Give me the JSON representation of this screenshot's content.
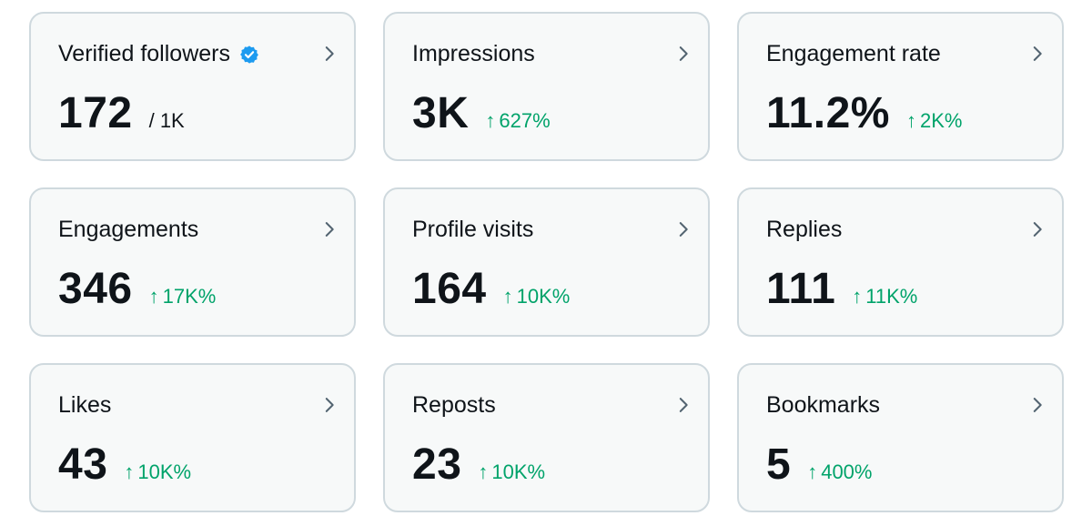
{
  "colors": {
    "card_bg": "#f7f9f9",
    "card_border": "#cfd9de",
    "text": "#0f1419",
    "muted": "#536471",
    "positive": "#00a36a",
    "verified": "#1d9bf0"
  },
  "cards": [
    {
      "title": "Verified followers",
      "value": "172",
      "sub": "/ 1K",
      "icon": "verified-badge-icon"
    },
    {
      "title": "Impressions",
      "value": "3K",
      "delta_arrow": "↑",
      "delta": "627%"
    },
    {
      "title": "Engagement rate",
      "value": "11.2%",
      "delta_arrow": "↑",
      "delta": "2K%"
    },
    {
      "title": "Engagements",
      "value": "346",
      "delta_arrow": "↑",
      "delta": "17K%"
    },
    {
      "title": "Profile visits",
      "value": "164",
      "delta_arrow": "↑",
      "delta": "10K%"
    },
    {
      "title": "Replies",
      "value": "111",
      "delta_arrow": "↑",
      "delta": "11K%"
    },
    {
      "title": "Likes",
      "value": "43",
      "delta_arrow": "↑",
      "delta": "10K%"
    },
    {
      "title": "Reposts",
      "value": "23",
      "delta_arrow": "↑",
      "delta": "10K%"
    },
    {
      "title": "Bookmarks",
      "value": "5",
      "delta_arrow": "↑",
      "delta": "400%"
    }
  ]
}
